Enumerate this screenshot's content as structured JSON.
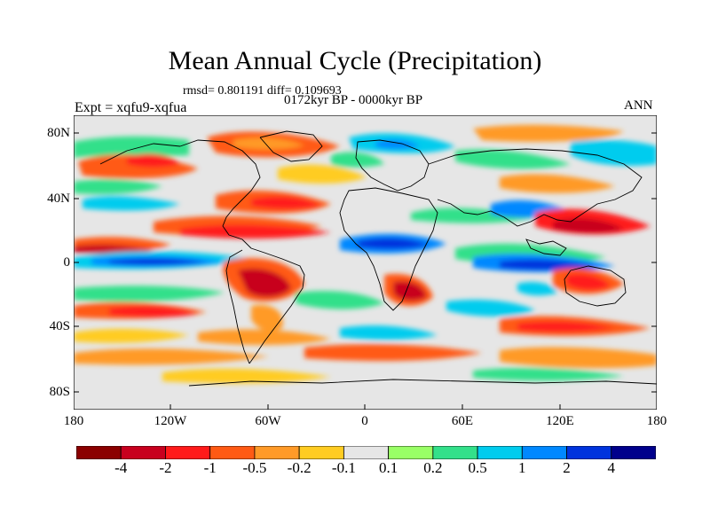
{
  "title": "Mean Annual Cycle (Precipitation)",
  "stats": "rmsd= 0.801191 diff= 0.109693",
  "period": "0172kyr BP - 0000kyr BP",
  "experiment": "Expt = xqfu9-xqfua",
  "season": "ANN",
  "map": {
    "lat_labels": [
      "80N",
      "40N",
      "0",
      "40S",
      "80S"
    ],
    "lon_labels": [
      "180",
      "120W",
      "60W",
      "0",
      "60E",
      "120E",
      "180"
    ]
  },
  "colorbar": {
    "labels": [
      "-4",
      "-2",
      "-1",
      "-0.5",
      "-0.2",
      "-0.1",
      "0.1",
      "0.2",
      "0.5",
      "1",
      "2",
      "4"
    ],
    "colors": [
      "#8b0000",
      "#c8001e",
      "#ff1a1a",
      "#ff5a14",
      "#ff9a28",
      "#ffcc22",
      "#e6e6e6",
      "#99ff66",
      "#33e08a",
      "#00ccee",
      "#0088ff",
      "#0033dd",
      "#00008c"
    ]
  }
}
